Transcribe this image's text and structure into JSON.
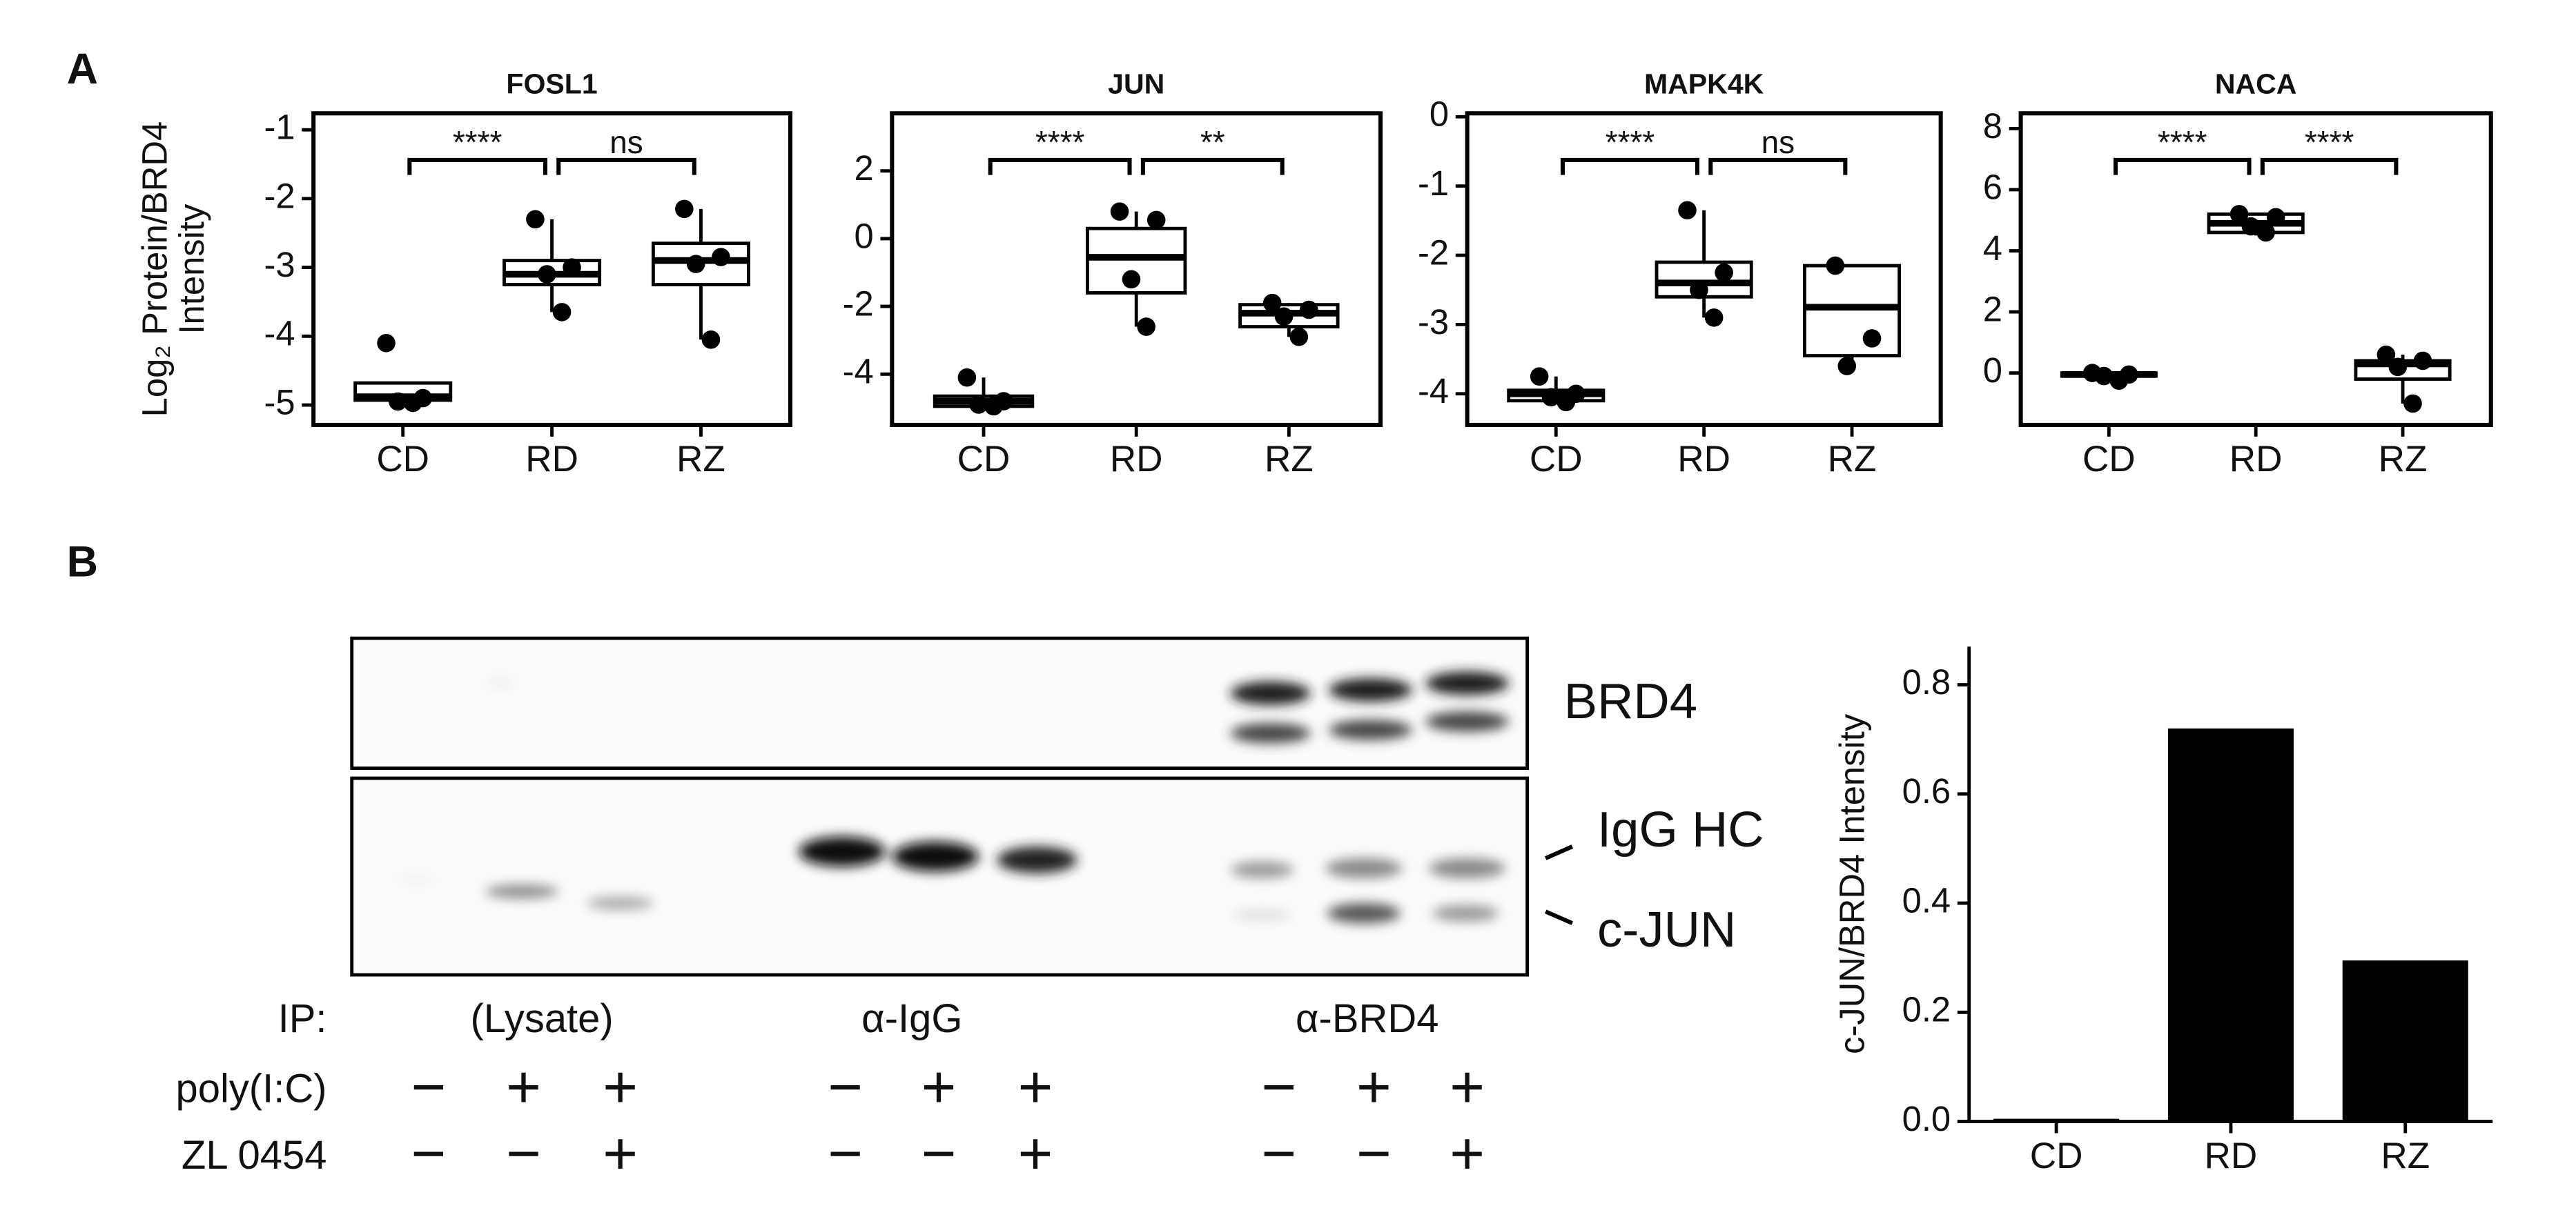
{
  "panel_labels": [
    "A",
    "B"
  ],
  "chart_data": [
    {
      "type": "box",
      "title": "FOSL1",
      "y_label": [
        "Log₂ Protein/BRD4",
        "Intensity"
      ],
      "categories": [
        "CD",
        "RD",
        "RZ"
      ],
      "boxes": [
        {
          "whislo": -4.97,
          "q1": -4.93,
          "med": -4.88,
          "q3": -4.68,
          "whishi": -4.68,
          "points": [
            -4.1,
            -4.9,
            -4.95,
            -4.97
          ]
        },
        {
          "whislo": -3.65,
          "q1": -3.25,
          "med": -3.1,
          "q3": -2.9,
          "whishi": -2.3,
          "points": [
            -2.3,
            -3.0,
            -3.1,
            -3.65
          ]
        },
        {
          "whislo": -4.05,
          "q1": -3.25,
          "med": -2.9,
          "q3": -2.65,
          "whishi": -2.15,
          "points": [
            -2.15,
            -2.85,
            -2.95,
            -4.05
          ]
        }
      ],
      "comparisons": [
        "****",
        "ns"
      ],
      "ylim": [
        -5.29,
        -0.76
      ],
      "yticks": [
        -5,
        -4,
        -3,
        -2,
        -1
      ]
    },
    {
      "type": "box",
      "title": "JUN",
      "categories": [
        "CD",
        "RD",
        "RZ"
      ],
      "boxes": [
        {
          "whislo": -5.0,
          "q1": -4.95,
          "med": -4.8,
          "q3": -4.65,
          "whishi": -4.1,
          "points": [
            -4.1,
            -4.8,
            -4.9,
            -4.95
          ]
        },
        {
          "whislo": -2.6,
          "q1": -1.6,
          "med": -0.55,
          "q3": 0.3,
          "whishi": 0.8,
          "points": [
            0.8,
            0.55,
            -1.2,
            -2.6
          ]
        },
        {
          "whislo": -2.9,
          "q1": -2.6,
          "med": -2.2,
          "q3": -1.95,
          "whishi": -1.9,
          "points": [
            -1.9,
            -2.1,
            -2.3,
            -2.9
          ]
        }
      ],
      "comparisons": [
        "****",
        "**"
      ],
      "ylim": [
        -5.5,
        3.7
      ],
      "yticks": [
        -4,
        -2,
        0,
        2
      ]
    },
    {
      "type": "box",
      "title": "MAPK4K",
      "categories": [
        "CD",
        "RD",
        "RZ"
      ],
      "boxes": [
        {
          "whislo": -4.12,
          "q1": -4.1,
          "med": -4.0,
          "q3": -3.95,
          "whishi": -3.75,
          "points": [
            -3.75,
            -4.0,
            -4.05,
            -4.12
          ]
        },
        {
          "whislo": -2.9,
          "q1": -2.6,
          "med": -2.4,
          "q3": -2.1,
          "whishi": -1.35,
          "points": [
            -1.35,
            -2.25,
            -2.5,
            -2.9
          ]
        },
        {
          "whislo": -3.6,
          "q1": -3.45,
          "med": -2.75,
          "q3": -2.15,
          "whishi": -2.15,
          "points": [
            -2.15,
            -3.2,
            -3.6
          ]
        }
      ],
      "comparisons": [
        "****",
        "ns"
      ],
      "ylim": [
        -4.45,
        0.05
      ],
      "yticks": [
        -4,
        -3,
        -2,
        -1,
        0
      ]
    },
    {
      "type": "box",
      "title": "NACA",
      "categories": [
        "CD",
        "RD",
        "RZ"
      ],
      "boxes": [
        {
          "whislo": -0.25,
          "q1": -0.1,
          "med": -0.05,
          "q3": 0,
          "whishi": 0.05,
          "points": [
            0,
            -0.05,
            -0.1,
            -0.25
          ]
        },
        {
          "whislo": 4.5,
          "q1": 4.6,
          "med": 4.9,
          "q3": 5.2,
          "whishi": 5.2,
          "points": [
            5.2,
            5.1,
            4.8,
            4.6
          ]
        },
        {
          "whislo": -1.0,
          "q1": -0.2,
          "med": 0.3,
          "q3": 0.4,
          "whishi": 0.6,
          "points": [
            0.6,
            0.4,
            0.2,
            -1.0
          ]
        }
      ],
      "comparisons": [
        "****",
        "****"
      ],
      "ylim": [
        -1.7,
        8.5
      ],
      "yticks": [
        0,
        2,
        4,
        6,
        8
      ]
    },
    {
      "type": "bar",
      "y_label": "c-JUN/BRD4 Intensity",
      "categories": [
        "CD",
        "RD",
        "RZ"
      ],
      "values": [
        0.005,
        0.72,
        0.295
      ],
      "color": "#000000",
      "ylim": [
        0,
        0.87
      ],
      "yticks": [
        {
          "value": 0,
          "label": "0.0"
        },
        {
          "value": 0.2,
          "label": "0.2"
        },
        {
          "value": 0.4,
          "label": "0.4"
        },
        {
          "value": 0.6,
          "label": "0.6"
        },
        {
          "value": 0.8,
          "label": "0.8"
        }
      ]
    }
  ],
  "blot": {
    "proteins": [
      "BRD4",
      "IgG HC",
      "c-JUN"
    ],
    "ip_label": "IP:",
    "ip_groups": [
      "(Lysate)",
      "α-IgG",
      "α-BRD4"
    ],
    "treatments": [
      {
        "name": "poly(I:C)",
        "signs": [
          "−",
          "+",
          "+",
          "−",
          "+",
          "+",
          "−",
          "+",
          "+"
        ]
      },
      {
        "name": "ZL 0454",
        "signs": [
          "−",
          "−",
          "+",
          "−",
          "−",
          "+",
          "−",
          "−",
          "+"
        ]
      }
    ]
  }
}
